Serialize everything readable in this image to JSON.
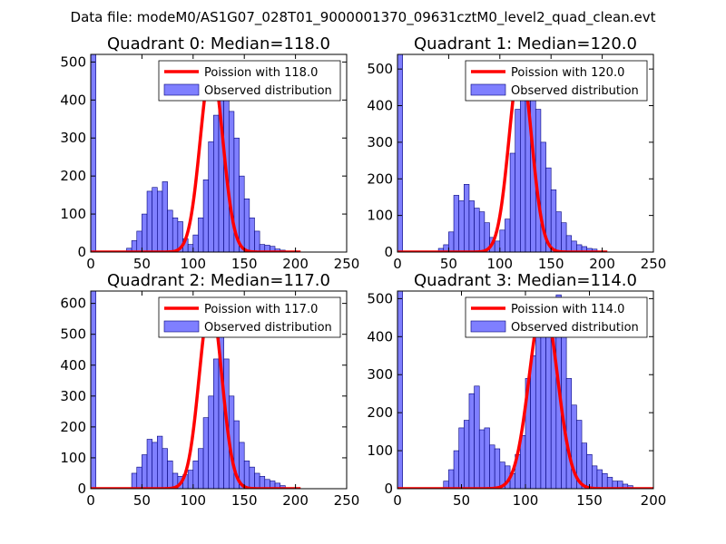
{
  "figure": {
    "suptitle": "Data file: modeM0/AS1G07_028T01_9000001370_09631cztM0_level2_quad_clean.evt"
  },
  "colors": {
    "poisson": "#ff0000",
    "hist_fill": "#7f7fff",
    "hist_edge": "#00007a"
  },
  "chart_data": [
    {
      "type": "histogram+line",
      "title": "Quadrant 0: Median=118.0",
      "xlim": [
        0,
        250
      ],
      "ylim": [
        0,
        520
      ],
      "xticks": [
        0,
        50,
        100,
        150,
        200,
        250
      ],
      "yticks": [
        0,
        100,
        200,
        300,
        400,
        500
      ],
      "bin_width": 5,
      "legend": {
        "placement": "top-right",
        "entries": [
          "Poission with 118.0",
          "Observed distribution"
        ]
      },
      "poisson_mean": 118.0,
      "poisson_peak": 490,
      "poisson_sigma": 11,
      "poisson_xrange": [
        0,
        205
      ],
      "bins": [
        {
          "x": 0,
          "count": 520
        },
        {
          "x": 35,
          "count": 10
        },
        {
          "x": 40,
          "count": 30
        },
        {
          "x": 45,
          "count": 55
        },
        {
          "x": 50,
          "count": 100
        },
        {
          "x": 55,
          "count": 160
        },
        {
          "x": 60,
          "count": 170
        },
        {
          "x": 65,
          "count": 160
        },
        {
          "x": 70,
          "count": 185
        },
        {
          "x": 75,
          "count": 110
        },
        {
          "x": 80,
          "count": 90
        },
        {
          "x": 85,
          "count": 80
        },
        {
          "x": 90,
          "count": 35
        },
        {
          "x": 95,
          "count": 20
        },
        {
          "x": 100,
          "count": 45
        },
        {
          "x": 105,
          "count": 90
        },
        {
          "x": 110,
          "count": 190
        },
        {
          "x": 115,
          "count": 290
        },
        {
          "x": 120,
          "count": 360
        },
        {
          "x": 125,
          "count": 470
        },
        {
          "x": 130,
          "count": 440
        },
        {
          "x": 135,
          "count": 370
        },
        {
          "x": 140,
          "count": 300
        },
        {
          "x": 145,
          "count": 200
        },
        {
          "x": 150,
          "count": 140
        },
        {
          "x": 155,
          "count": 90
        },
        {
          "x": 160,
          "count": 55
        },
        {
          "x": 165,
          "count": 20
        },
        {
          "x": 170,
          "count": 18
        },
        {
          "x": 175,
          "count": 15
        },
        {
          "x": 180,
          "count": 8
        },
        {
          "x": 185,
          "count": 5
        }
      ]
    },
    {
      "type": "histogram+line",
      "title": "Quadrant 1: Median=120.0",
      "xlim": [
        0,
        250
      ],
      "ylim": [
        0,
        540
      ],
      "xticks": [
        0,
        50,
        100,
        150,
        200,
        250
      ],
      "yticks": [
        0,
        100,
        200,
        300,
        400,
        500
      ],
      "bin_width": 5,
      "legend": {
        "placement": "top-right",
        "entries": [
          "Poission with 120.0",
          "Observed distribution"
        ]
      },
      "poisson_mean": 120.0,
      "poisson_peak": 515,
      "poisson_sigma": 11,
      "poisson_xrange": [
        0,
        205
      ],
      "bins": [
        {
          "x": 0,
          "count": 540
        },
        {
          "x": 40,
          "count": 10
        },
        {
          "x": 45,
          "count": 20
        },
        {
          "x": 50,
          "count": 55
        },
        {
          "x": 55,
          "count": 155
        },
        {
          "x": 60,
          "count": 140
        },
        {
          "x": 65,
          "count": 185
        },
        {
          "x": 70,
          "count": 140
        },
        {
          "x": 75,
          "count": 120
        },
        {
          "x": 80,
          "count": 110
        },
        {
          "x": 85,
          "count": 80
        },
        {
          "x": 90,
          "count": 40
        },
        {
          "x": 95,
          "count": 30
        },
        {
          "x": 100,
          "count": 60
        },
        {
          "x": 105,
          "count": 90
        },
        {
          "x": 110,
          "count": 270
        },
        {
          "x": 115,
          "count": 390
        },
        {
          "x": 120,
          "count": 440
        },
        {
          "x": 125,
          "count": 460
        },
        {
          "x": 130,
          "count": 420
        },
        {
          "x": 135,
          "count": 390
        },
        {
          "x": 140,
          "count": 300
        },
        {
          "x": 145,
          "count": 230
        },
        {
          "x": 150,
          "count": 170
        },
        {
          "x": 155,
          "count": 110
        },
        {
          "x": 160,
          "count": 80
        },
        {
          "x": 165,
          "count": 45
        },
        {
          "x": 170,
          "count": 30
        },
        {
          "x": 175,
          "count": 20
        },
        {
          "x": 180,
          "count": 15
        },
        {
          "x": 185,
          "count": 10
        },
        {
          "x": 190,
          "count": 8
        }
      ]
    },
    {
      "type": "histogram+line",
      "title": "Quadrant 2: Median=117.0",
      "xlim": [
        0,
        250
      ],
      "ylim": [
        0,
        640
      ],
      "xticks": [
        0,
        50,
        100,
        150,
        200,
        250
      ],
      "yticks": [
        0,
        100,
        200,
        300,
        400,
        500,
        600
      ],
      "bin_width": 5,
      "legend": {
        "placement": "top-right",
        "entries": [
          "Poission with 117.0",
          "Observed distribution"
        ]
      },
      "poisson_mean": 117.0,
      "poisson_peak": 605,
      "poisson_sigma": 11,
      "poisson_xrange": [
        0,
        205
      ],
      "bins": [
        {
          "x": 0,
          "count": 640
        },
        {
          "x": 40,
          "count": 50
        },
        {
          "x": 45,
          "count": 70
        },
        {
          "x": 50,
          "count": 110
        },
        {
          "x": 55,
          "count": 160
        },
        {
          "x": 60,
          "count": 150
        },
        {
          "x": 65,
          "count": 170
        },
        {
          "x": 70,
          "count": 130
        },
        {
          "x": 75,
          "count": 90
        },
        {
          "x": 80,
          "count": 50
        },
        {
          "x": 85,
          "count": 40
        },
        {
          "x": 90,
          "count": 45
        },
        {
          "x": 95,
          "count": 60
        },
        {
          "x": 100,
          "count": 90
        },
        {
          "x": 105,
          "count": 130
        },
        {
          "x": 110,
          "count": 230
        },
        {
          "x": 115,
          "count": 300
        },
        {
          "x": 120,
          "count": 420
        },
        {
          "x": 125,
          "count": 560
        },
        {
          "x": 130,
          "count": 420
        },
        {
          "x": 135,
          "count": 300
        },
        {
          "x": 140,
          "count": 220
        },
        {
          "x": 145,
          "count": 150
        },
        {
          "x": 150,
          "count": 90
        },
        {
          "x": 155,
          "count": 70
        },
        {
          "x": 160,
          "count": 50
        },
        {
          "x": 165,
          "count": 40
        },
        {
          "x": 170,
          "count": 30
        },
        {
          "x": 175,
          "count": 25
        },
        {
          "x": 180,
          "count": 18
        },
        {
          "x": 185,
          "count": 10
        }
      ]
    },
    {
      "type": "histogram+line",
      "title": "Quadrant 3: Median=114.0",
      "xlim": [
        0,
        200
      ],
      "ylim": [
        0,
        520
      ],
      "xticks": [
        0,
        50,
        100,
        150,
        200
      ],
      "yticks": [
        0,
        100,
        200,
        300,
        400,
        500
      ],
      "bin_width": 4,
      "legend": {
        "placement": "top-right",
        "entries": [
          "Poission with 114.0",
          "Observed distribution"
        ]
      },
      "poisson_mean": 114.0,
      "poisson_peak": 490,
      "poisson_sigma": 11,
      "poisson_xrange": [
        0,
        200
      ],
      "bins": [
        {
          "x": 0,
          "count": 520
        },
        {
          "x": 36,
          "count": 20
        },
        {
          "x": 40,
          "count": 50
        },
        {
          "x": 44,
          "count": 100
        },
        {
          "x": 48,
          "count": 160
        },
        {
          "x": 52,
          "count": 180
        },
        {
          "x": 56,
          "count": 250
        },
        {
          "x": 60,
          "count": 270
        },
        {
          "x": 64,
          "count": 155
        },
        {
          "x": 68,
          "count": 160
        },
        {
          "x": 72,
          "count": 115
        },
        {
          "x": 76,
          "count": 105
        },
        {
          "x": 80,
          "count": 70
        },
        {
          "x": 84,
          "count": 60
        },
        {
          "x": 88,
          "count": 40
        },
        {
          "x": 92,
          "count": 90
        },
        {
          "x": 96,
          "count": 140
        },
        {
          "x": 100,
          "count": 290
        },
        {
          "x": 104,
          "count": 350
        },
        {
          "x": 108,
          "count": 400
        },
        {
          "x": 112,
          "count": 480
        },
        {
          "x": 116,
          "count": 500
        },
        {
          "x": 120,
          "count": 460
        },
        {
          "x": 124,
          "count": 510
        },
        {
          "x": 128,
          "count": 420
        },
        {
          "x": 132,
          "count": 290
        },
        {
          "x": 136,
          "count": 220
        },
        {
          "x": 140,
          "count": 180
        },
        {
          "x": 144,
          "count": 120
        },
        {
          "x": 148,
          "count": 90
        },
        {
          "x": 152,
          "count": 60
        },
        {
          "x": 156,
          "count": 50
        },
        {
          "x": 160,
          "count": 40
        },
        {
          "x": 164,
          "count": 30
        },
        {
          "x": 168,
          "count": 20
        },
        {
          "x": 172,
          "count": 20
        },
        {
          "x": 176,
          "count": 12
        },
        {
          "x": 180,
          "count": 8
        }
      ]
    }
  ]
}
